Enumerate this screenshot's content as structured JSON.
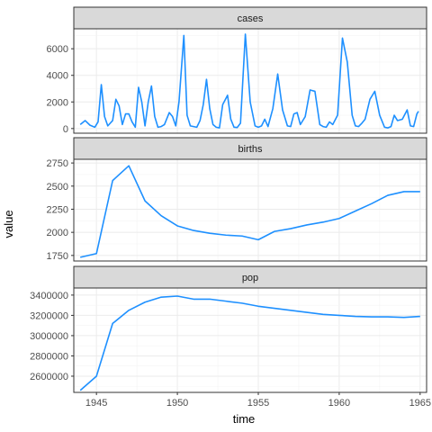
{
  "chart_data": {
    "type": "line",
    "layout": "facet_stack",
    "xlabel": "time",
    "ylabel": "value",
    "xlim": [
      1943.6,
      1965.4
    ],
    "x_ticks": [
      1945,
      1950,
      1955,
      1960,
      1965
    ],
    "x_tick_labels": [
      "1945",
      "1950",
      "1955",
      "1960",
      "1965"
    ],
    "grid": true,
    "color": "#1e90ff",
    "facets": [
      {
        "name": "cases",
        "ylim": [
          -350,
          7500
        ],
        "y_ticks": [
          0,
          2000,
          4000,
          6000
        ],
        "y_tick_labels": [
          "0",
          "2000",
          "4000",
          "6000"
        ],
        "x": [
          1944.0,
          1944.3,
          1944.6,
          1944.9,
          1945.1,
          1945.3,
          1945.5,
          1945.7,
          1946.0,
          1946.2,
          1946.4,
          1946.6,
          1946.8,
          1947.0,
          1947.2,
          1947.4,
          1947.6,
          1947.8,
          1948.0,
          1948.2,
          1948.4,
          1948.6,
          1948.8,
          1949.0,
          1949.2,
          1949.5,
          1949.7,
          1949.9,
          1950.1,
          1950.4,
          1950.6,
          1950.8,
          1951.0,
          1951.2,
          1951.4,
          1951.6,
          1951.8,
          1952.0,
          1952.2,
          1952.4,
          1952.6,
          1952.8,
          1953.1,
          1953.3,
          1953.5,
          1953.7,
          1953.9,
          1954.2,
          1954.5,
          1954.8,
          1955.0,
          1955.2,
          1955.4,
          1955.6,
          1955.9,
          1956.2,
          1956.5,
          1956.8,
          1957.0,
          1957.2,
          1957.4,
          1957.6,
          1957.9,
          1958.2,
          1958.5,
          1958.8,
          1959.0,
          1959.2,
          1959.4,
          1959.6,
          1959.9,
          1960.2,
          1960.5,
          1960.8,
          1961.0,
          1961.2,
          1961.4,
          1961.6,
          1961.9,
          1962.2,
          1962.5,
          1962.8,
          1963.0,
          1963.2,
          1963.4,
          1963.6,
          1963.9,
          1964.2,
          1964.4,
          1964.6,
          1964.8,
          1964.9
        ],
        "values": [
          300,
          600,
          250,
          100,
          500,
          3300,
          900,
          200,
          600,
          2200,
          1700,
          300,
          1100,
          1100,
          500,
          100,
          3100,
          2000,
          200,
          2000,
          3200,
          900,
          100,
          150,
          300,
          1200,
          900,
          200,
          2000,
          7000,
          1000,
          200,
          150,
          100,
          600,
          1800,
          3700,
          1500,
          300,
          100,
          50,
          1800,
          2500,
          700,
          100,
          80,
          400,
          7100,
          2000,
          200,
          100,
          200,
          700,
          150,
          1500,
          4100,
          1400,
          200,
          150,
          1100,
          1200,
          300,
          900,
          2900,
          2800,
          300,
          150,
          100,
          500,
          300,
          1000,
          6800,
          5000,
          1000,
          200,
          150,
          400,
          700,
          2200,
          2800,
          1000,
          100,
          50,
          150,
          1000,
          600,
          700,
          1400,
          200,
          150,
          1100,
          1300
        ]
      },
      {
        "name": "births",
        "ylim": [
          1690,
          2790
        ],
        "y_ticks": [
          1750,
          2000,
          2250,
          2500,
          2750
        ],
        "y_tick_labels": [
          "1750",
          "2000",
          "2250",
          "2500",
          "2750"
        ],
        "x": [
          1944,
          1945,
          1946,
          1947,
          1948,
          1949,
          1950,
          1951,
          1952,
          1953,
          1954,
          1955,
          1956,
          1957,
          1958,
          1959,
          1960,
          1961,
          1962,
          1963,
          1964,
          1965
        ],
        "values": [
          1730,
          1770,
          2560,
          2720,
          2340,
          2180,
          2070,
          2020,
          1990,
          1970,
          1960,
          1920,
          2010,
          2040,
          2080,
          2110,
          2150,
          2230,
          2310,
          2400,
          2440,
          2440
        ]
      },
      {
        "name": "pop",
        "ylim": [
          2440000,
          3470000
        ],
        "y_ticks": [
          2600000,
          2800000,
          3000000,
          3200000,
          3400000
        ],
        "y_tick_labels": [
          "2600000",
          "2800000",
          "3000000",
          "3200000",
          "3400000"
        ],
        "x": [
          1944,
          1945,
          1946,
          1947,
          1948,
          1949,
          1950,
          1951,
          1952,
          1953,
          1954,
          1955,
          1956,
          1957,
          1958,
          1959,
          1960,
          1961,
          1962,
          1963,
          1964,
          1965
        ],
        "values": [
          2460000,
          2600000,
          3120000,
          3250000,
          3330000,
          3380000,
          3390000,
          3360000,
          3360000,
          3340000,
          3320000,
          3290000,
          3270000,
          3250000,
          3230000,
          3210000,
          3200000,
          3190000,
          3185000,
          3185000,
          3180000,
          3190000
        ]
      }
    ]
  }
}
